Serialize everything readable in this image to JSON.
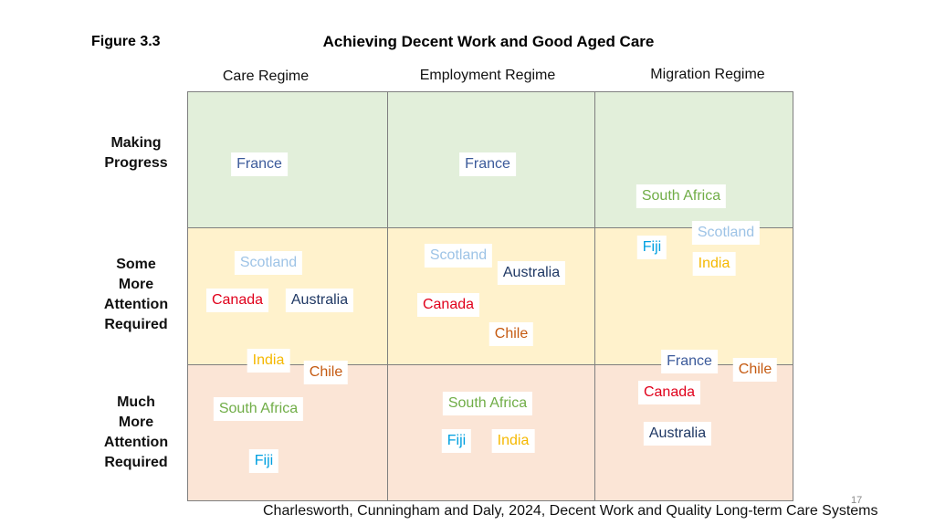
{
  "figure_label": "Figure 3.3",
  "title": "Achieving Decent Work and Good Aged Care",
  "columns": [
    "Care Regime",
    "Employment Regime",
    "Migration Regime"
  ],
  "rows": [
    {
      "lines": [
        "Making",
        "Progress"
      ]
    },
    {
      "lines": [
        "Some",
        "More",
        "Attention",
        "Required"
      ]
    },
    {
      "lines": [
        "Much",
        "More",
        "Attention",
        "Required"
      ]
    }
  ],
  "labels": [
    {
      "text": "France",
      "color": "#3b5a9a"
    },
    {
      "text": "Scotland",
      "color": "#9dc3e6"
    },
    {
      "text": "Canada",
      "color": "#e0001b"
    },
    {
      "text": "Australia",
      "color": "#1f3864"
    },
    {
      "text": "India",
      "color": "#f5b800"
    },
    {
      "text": "Chile",
      "color": "#c55a11"
    },
    {
      "text": "South Africa",
      "color": "#70ad47"
    },
    {
      "text": "Fiji",
      "color": "#00a0e0"
    },
    {
      "text": "France",
      "color": "#3b5a9a"
    },
    {
      "text": "Scotland",
      "color": "#9dc3e6"
    },
    {
      "text": "Australia",
      "color": "#1f3864"
    },
    {
      "text": "Canada",
      "color": "#e0001b"
    },
    {
      "text": "Chile",
      "color": "#c55a11"
    },
    {
      "text": "South Africa",
      "color": "#70ad47"
    },
    {
      "text": "Fiji",
      "color": "#00a0e0"
    },
    {
      "text": "India",
      "color": "#f5b800"
    },
    {
      "text": "South Africa",
      "color": "#70ad47"
    },
    {
      "text": "Scotland",
      "color": "#9dc3e6"
    },
    {
      "text": "Fiji",
      "color": "#00a0e0"
    },
    {
      "text": "India",
      "color": "#f5b800"
    },
    {
      "text": "France",
      "color": "#3b5a9a"
    },
    {
      "text": "Chile",
      "color": "#c55a11"
    },
    {
      "text": "Canada",
      "color": "#e0001b"
    },
    {
      "text": "Australia",
      "color": "#1f3864"
    }
  ],
  "page_number": "17",
  "citation": "Charlesworth, Cunningham and Daly, 2024, Decent Work and Quality Long-term Care Systems"
}
